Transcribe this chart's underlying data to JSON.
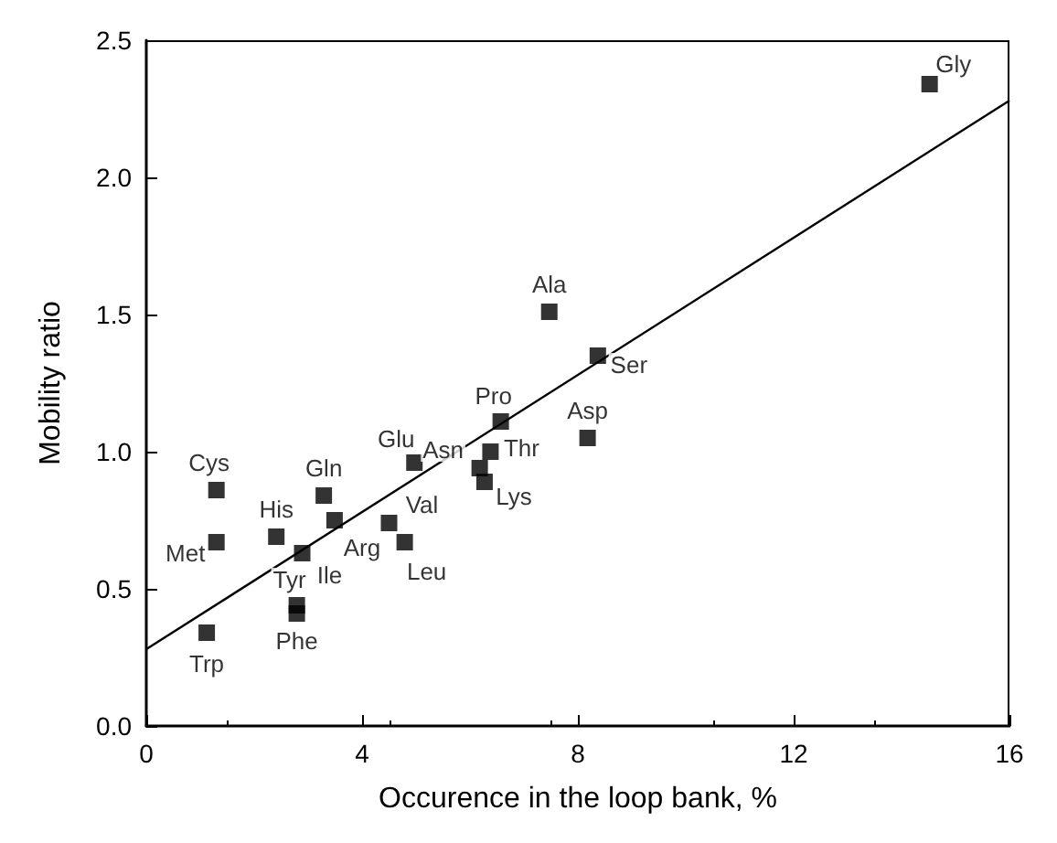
{
  "chart_data": {
    "type": "scatter",
    "xlabel": "Occurence in the loop bank, %",
    "ylabel": "Mobility ratio",
    "xlim": [
      0,
      16
    ],
    "xticks": [
      0,
      4,
      8,
      12,
      16
    ],
    "ylim": [
      0,
      2.5
    ],
    "yticks": [
      {
        "value": 0,
        "label": "0.0"
      },
      {
        "value": 0.5,
        "label": "0.5"
      },
      {
        "value": 1,
        "label": "1.0"
      },
      {
        "value": 1.5,
        "label": "1.5"
      },
      {
        "value": 2,
        "label": "2.0"
      },
      {
        "value": 2.5,
        "label": "2.5"
      }
    ],
    "grid": false,
    "marker": "square",
    "series": [
      {
        "color": "#000000",
        "x": [
          14.52,
          7.47,
          8.37,
          6.57,
          8.18,
          6.18,
          6.38,
          6.27,
          4.97,
          3.29,
          1.3,
          2.41,
          1.3,
          3.49,
          4.5,
          4.79,
          2.89,
          2.79,
          2.79,
          1.12
        ],
        "values": [
          2.34,
          1.51,
          1.35,
          1.11,
          1.05,
          0.94,
          1.0,
          0.89,
          0.96,
          0.84,
          0.86,
          0.69,
          0.67,
          0.75,
          0.74,
          0.67,
          0.63,
          0.44,
          0.41,
          0.34
        ]
      },
      {
        "type": "line",
        "color": "#000000",
        "marker": "none",
        "line_style": "solid",
        "x": [
          0,
          16
        ],
        "values": [
          0.28,
          2.28
        ]
      }
    ],
    "annotations": [
      {
        "text": "Gly",
        "x": 14.52,
        "y": 2.34
      },
      {
        "text": "Ala",
        "x": 7.47,
        "y": 1.51
      },
      {
        "text": "Ser",
        "x": 8.37,
        "y": 1.35
      },
      {
        "text": "Pro",
        "x": 6.57,
        "y": 1.11
      },
      {
        "text": "Asp",
        "x": 8.18,
        "y": 1.05
      },
      {
        "text": "Asn",
        "x": 6.18,
        "y": 0.94
      },
      {
        "text": "Thr",
        "x": 6.38,
        "y": 1.0
      },
      {
        "text": "Lys",
        "x": 6.27,
        "y": 0.89
      },
      {
        "text": "Glu",
        "x": 4.97,
        "y": 0.96
      },
      {
        "text": "Gln",
        "x": 3.29,
        "y": 0.84
      },
      {
        "text": "Cys",
        "x": 1.3,
        "y": 0.86
      },
      {
        "text": "His",
        "x": 2.41,
        "y": 0.69
      },
      {
        "text": "Met",
        "x": 1.3,
        "y": 0.67
      },
      {
        "text": "Arg",
        "x": 3.49,
        "y": 0.75
      },
      {
        "text": "Val",
        "x": 4.5,
        "y": 0.74
      },
      {
        "text": "Leu",
        "x": 4.79,
        "y": 0.67
      },
      {
        "text": "Ile",
        "x": 2.89,
        "y": 0.63
      },
      {
        "text": "Tyr",
        "x": 2.79,
        "y": 0.44
      },
      {
        "text": "Phe",
        "x": 2.79,
        "y": 0.41
      },
      {
        "text": "Trp",
        "x": 1.12,
        "y": 0.34
      }
    ]
  }
}
